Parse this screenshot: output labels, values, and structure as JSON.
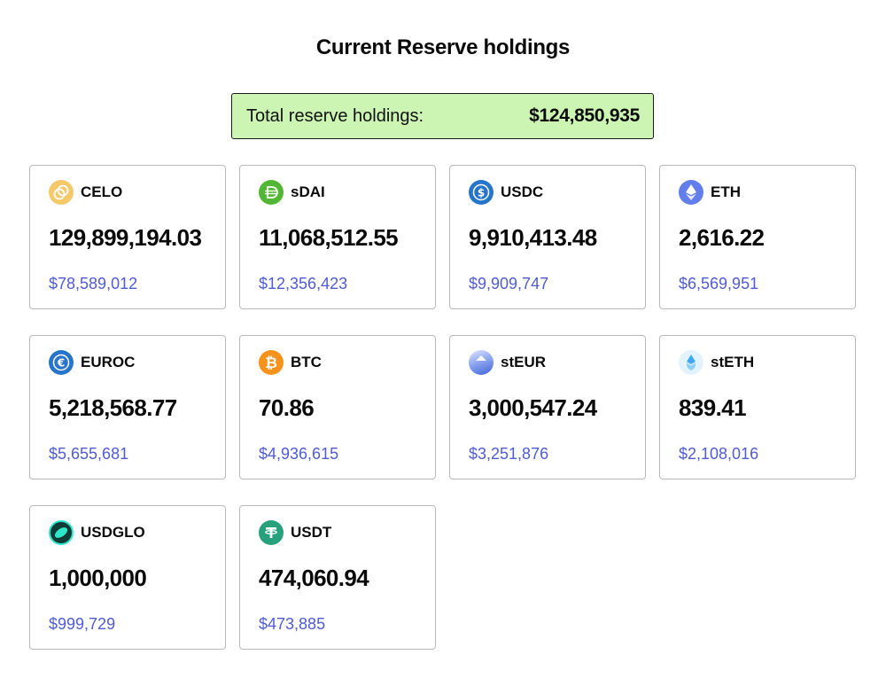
{
  "title": "Current Reserve holdings",
  "total": {
    "label": "Total reserve holdings:",
    "value": "$124,850,935"
  },
  "assets": [
    {
      "symbol": "CELO",
      "amount": "129,899,194.03",
      "usd": "$78,589,012",
      "icon": "celo-icon",
      "color": "#f5c86a"
    },
    {
      "symbol": "sDAI",
      "amount": "11,068,512.55",
      "usd": "$12,356,423",
      "icon": "sdai-icon",
      "color": "#52b734"
    },
    {
      "symbol": "USDC",
      "amount": "9,910,413.48",
      "usd": "$9,909,747",
      "icon": "usdc-icon",
      "color": "#2775ca"
    },
    {
      "symbol": "ETH",
      "amount": "2,616.22",
      "usd": "$6,569,951",
      "icon": "eth-icon",
      "color": "#627eea"
    },
    {
      "symbol": "EUROC",
      "amount": "5,218,568.77",
      "usd": "$5,655,681",
      "icon": "euroc-icon",
      "color": "#2775ca"
    },
    {
      "symbol": "BTC",
      "amount": "70.86",
      "usd": "$4,936,615",
      "icon": "btc-icon",
      "color": "#f7931a"
    },
    {
      "symbol": "stEUR",
      "amount": "3,000,547.24",
      "usd": "$3,251,876",
      "icon": "steur-icon",
      "color": "#5a7fe0"
    },
    {
      "symbol": "stETH",
      "amount": "839.41",
      "usd": "$2,108,016",
      "icon": "steth-icon",
      "color": "#e3f3fd"
    },
    {
      "symbol": "USDGLO",
      "amount": "1,000,000",
      "usd": "$999,729",
      "icon": "usdglo-icon",
      "color": "#0f3b36"
    },
    {
      "symbol": "USDT",
      "amount": "474,060.94",
      "usd": "$473,885",
      "icon": "usdt-icon",
      "color": "#26a17b"
    }
  ]
}
